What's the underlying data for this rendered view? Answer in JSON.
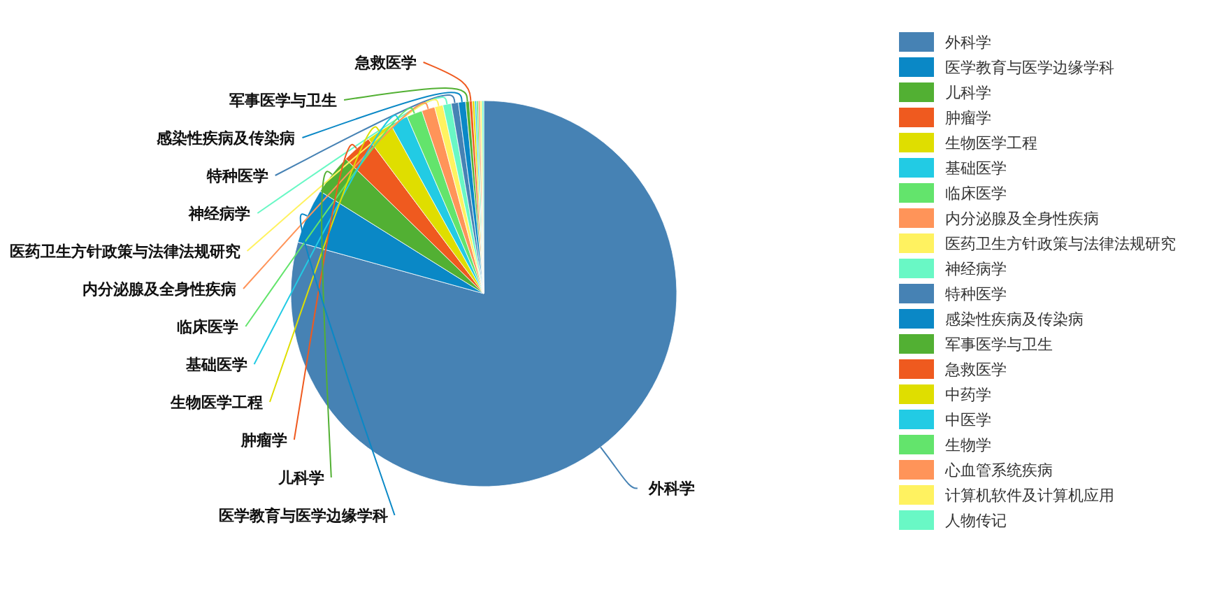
{
  "chart_data": {
    "type": "pie",
    "categories": [
      "外科学",
      "医学教育与医学边缘学科",
      "儿科学",
      "肿瘤学",
      "生物医学工程",
      "基础医学",
      "临床医学",
      "内分泌腺及全身性疾病",
      "医药卫生方针政策与法律法规研究",
      "神经病学",
      "特种医学",
      "感染性疾病及传染病",
      "军事医学与卫生",
      "急救医学",
      "中药学",
      "中医学",
      "生物学",
      "心血管系统疾病",
      "计算机软件及计算机应用",
      "人物传记"
    ],
    "values": [
      79.3,
      4.6,
      3.4,
      2.5,
      2.2,
      1.5,
      1.3,
      1.1,
      0.7,
      0.7,
      0.6,
      0.6,
      0.3,
      0.25,
      0.2,
      0.15,
      0.15,
      0.15,
      0.15,
      0.15
    ],
    "colors": [
      "#4682b4",
      "#0a88c6",
      "#52b033",
      "#ef5a1f",
      "#dfde00",
      "#22cbe4",
      "#63e46c",
      "#ff9459",
      "#fff260",
      "#69f8c5",
      "#4682b4",
      "#0a88c6",
      "#52b033",
      "#ef5a1f",
      "#dfde00",
      "#22cbe4",
      "#63e46c",
      "#ff9459",
      "#fff260",
      "#69f8c5"
    ],
    "legend": "right"
  }
}
